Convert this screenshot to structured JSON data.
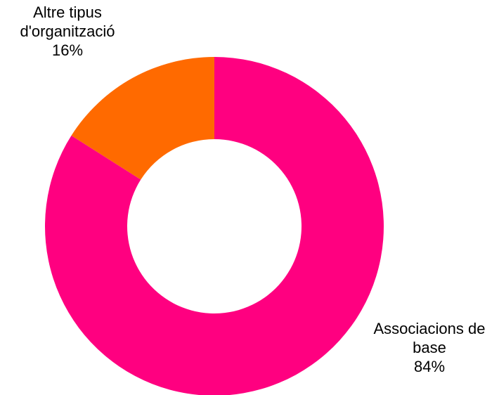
{
  "chart_data": {
    "type": "pie",
    "variant": "donut",
    "slices": [
      {
        "label_lines": [
          "Associacions de",
          "base"
        ],
        "value": 84,
        "percent_label": "84%",
        "color": "#ff0080"
      },
      {
        "label_lines": [
          "Altre tipus",
          "d'organització"
        ],
        "value": 16,
        "percent_label": "16%",
        "color": "#ff6a00"
      }
    ],
    "legend": "none",
    "labels": "outside"
  }
}
